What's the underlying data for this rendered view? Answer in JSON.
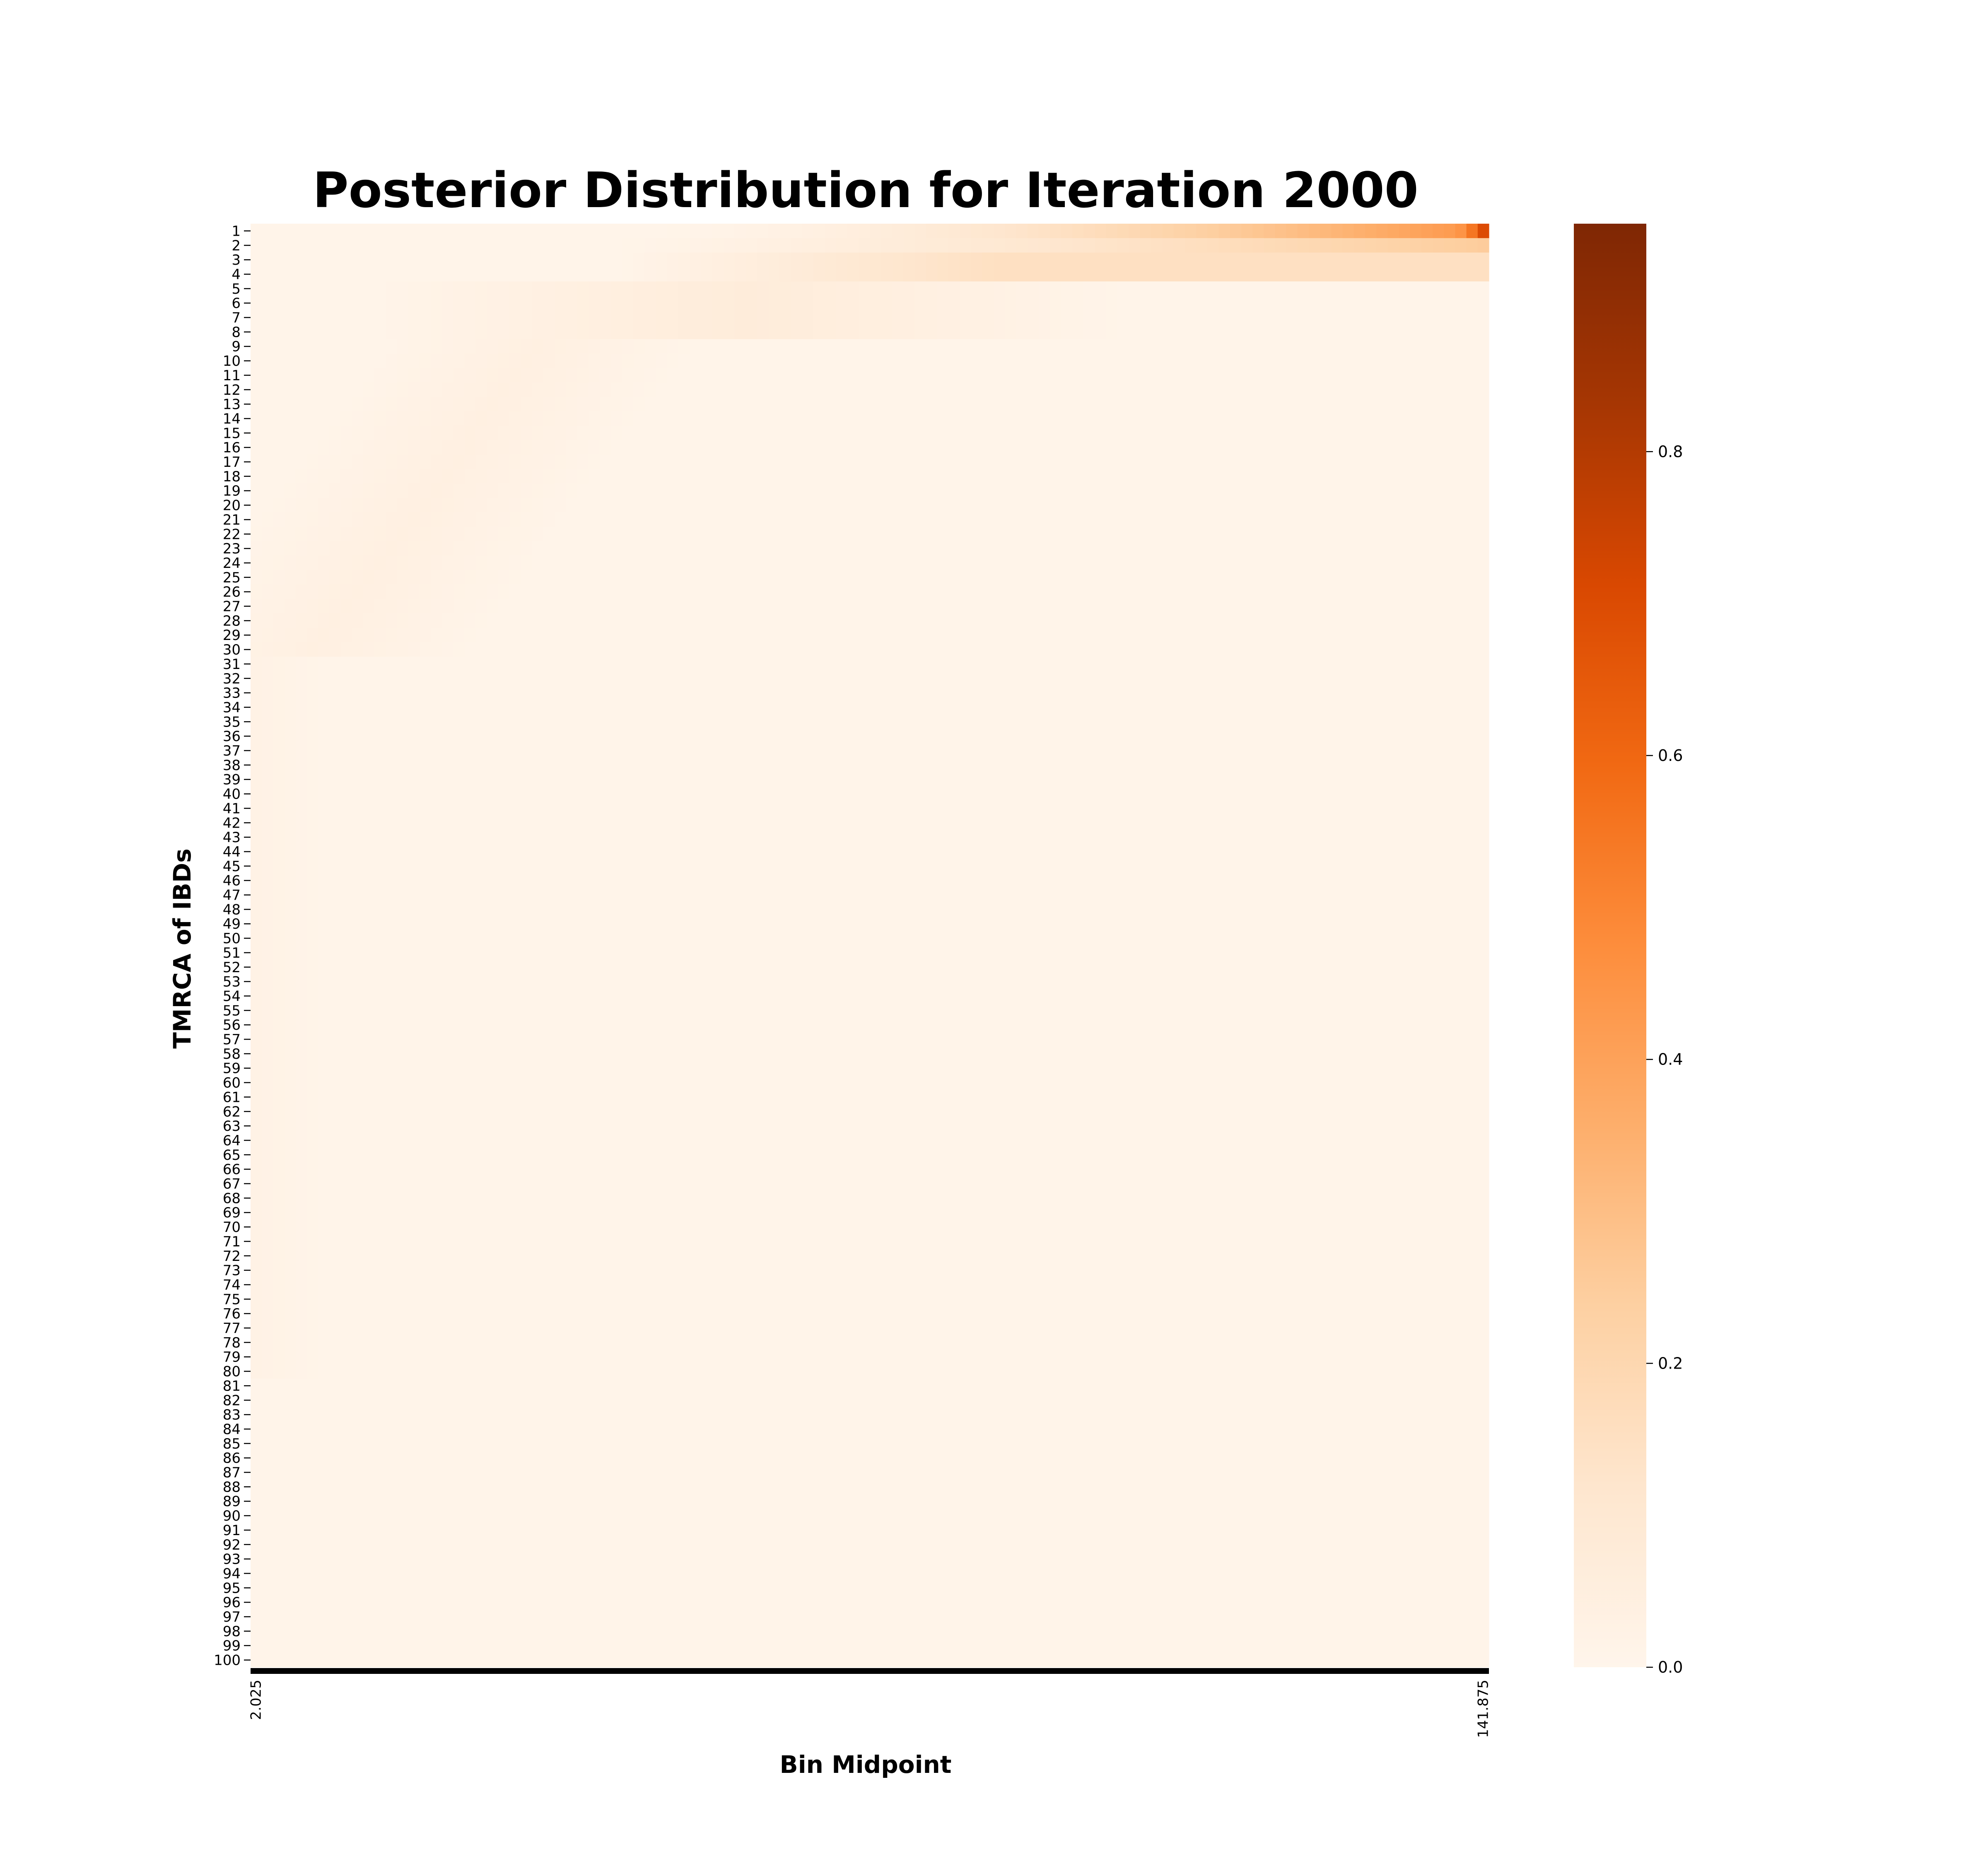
{
  "chart_data": {
    "type": "heatmap",
    "title": "Posterior Distribution for Iteration 2000",
    "xlabel": "Bin Midpoint",
    "ylabel": "TMRCA of IBDs",
    "x_ticks_visible": [
      "2.025",
      "141.875"
    ],
    "y_categories_range": [
      1,
      100
    ],
    "y_tick_step": 1,
    "n_rows": 100,
    "n_cols": 110,
    "colormap": "Oranges",
    "colormap_stops": [
      "#fff5eb",
      "#fee6ce",
      "#fdd0a2",
      "#fdae6b",
      "#fd8d3c",
      "#f16913",
      "#d94801",
      "#a63603",
      "#7f2704"
    ],
    "colorbar": {
      "vmin": 0.0,
      "vmax": 0.95,
      "ticks": [
        "0.0",
        "0.2",
        "0.4",
        "0.6",
        "0.8"
      ]
    },
    "estimated_values": {
      "max_cell": {
        "row": 1,
        "col": "141.875",
        "value": 0.7
      },
      "row_1_right_end": 0.45,
      "row_2_right_end": 0.25,
      "rows_3_to_4_right_half": 0.15,
      "rows_5_to_8_middle": 0.07,
      "rows_9_to_30_left_diagonal": 0.04,
      "background": 0.01
    }
  }
}
